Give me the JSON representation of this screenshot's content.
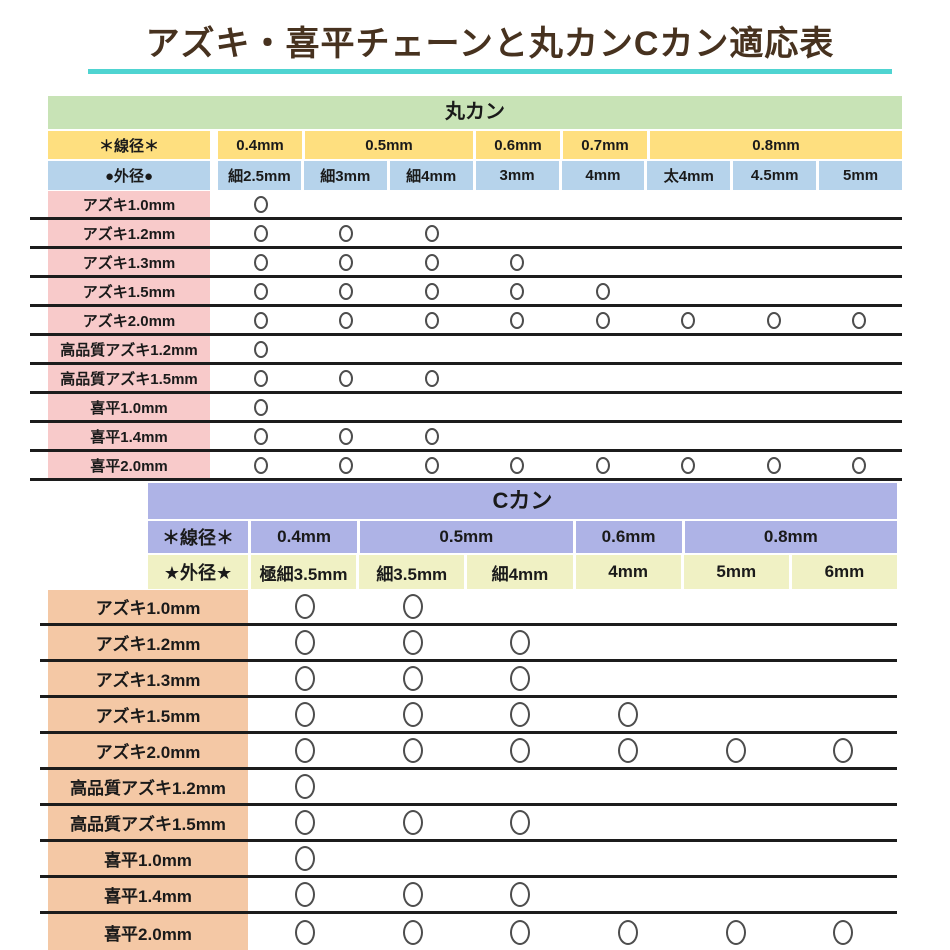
{
  "title": {
    "text": "アズキ・喜平チェーンと丸カンCカン適応表"
  },
  "colors": {
    "title_text": "#47321f",
    "title_underline": "#4fd4d1",
    "marukan_header": "#c8e3b6",
    "marukan_wire_row": "#fedf7f",
    "marukan_outer_row": "#b6d3eb",
    "marukan_row_label": "#f8caca",
    "ckan_header": "#aeb3e6",
    "ckan_outer_row": "#f0f1c4",
    "ckan_row_label": "#f4c8a5",
    "separator_line": "#1c1c1c"
  },
  "symbols": {
    "compatible_mark": "○"
  },
  "tables": [
    {
      "title": "丸カン",
      "wire_label": "＊線径＊",
      "outer_label": "●外径●",
      "wire_groups": [
        {
          "label": "0.4mm",
          "span": 1
        },
        {
          "label": "0.5mm",
          "span": 2
        },
        {
          "label": "0.6mm",
          "span": 1
        },
        {
          "label": "0.7mm",
          "span": 1
        },
        {
          "label": "0.8mm",
          "span": 3
        }
      ],
      "outer_cols": [
        "細2.5mm",
        "細3mm",
        "細4mm",
        "3mm",
        "4mm",
        "太4mm",
        "4.5mm",
        "5mm"
      ],
      "rows": [
        {
          "label": "アズキ1.0mm",
          "marks": [
            1,
            0,
            0,
            0,
            0,
            0,
            0,
            0
          ]
        },
        {
          "label": "アズキ1.2mm",
          "marks": [
            1,
            1,
            1,
            0,
            0,
            0,
            0,
            0
          ]
        },
        {
          "label": "アズキ1.3mm",
          "marks": [
            1,
            1,
            1,
            1,
            0,
            0,
            0,
            0
          ]
        },
        {
          "label": "アズキ1.5mm",
          "marks": [
            1,
            1,
            1,
            1,
            1,
            0,
            0,
            0
          ]
        },
        {
          "label": "アズキ2.0mm",
          "marks": [
            1,
            1,
            1,
            1,
            1,
            1,
            1,
            1
          ]
        },
        {
          "label": "高品質アズキ1.2mm",
          "marks": [
            1,
            0,
            0,
            0,
            0,
            0,
            0,
            0
          ]
        },
        {
          "label": "高品質アズキ1.5mm",
          "marks": [
            1,
            1,
            1,
            0,
            0,
            0,
            0,
            0
          ]
        },
        {
          "label": "喜平1.0mm",
          "marks": [
            1,
            0,
            0,
            0,
            0,
            0,
            0,
            0
          ]
        },
        {
          "label": "喜平1.4mm",
          "marks": [
            1,
            1,
            1,
            0,
            0,
            0,
            0,
            0
          ]
        },
        {
          "label": "喜平2.0mm",
          "marks": [
            1,
            1,
            1,
            1,
            1,
            1,
            1,
            1
          ]
        }
      ]
    },
    {
      "title": "Cカン",
      "wire_label": "＊線径＊",
      "outer_label": "★外径★",
      "wire_groups": [
        {
          "label": "0.4mm",
          "span": 1
        },
        {
          "label": "0.5mm",
          "span": 2
        },
        {
          "label": "0.6mm",
          "span": 1
        },
        {
          "label": "0.8mm",
          "span": 2
        }
      ],
      "outer_cols": [
        "極細3.5mm",
        "細3.5mm",
        "細4mm",
        "4mm",
        "5mm",
        "6mm"
      ],
      "rows": [
        {
          "label": "アズキ1.0mm",
          "marks": [
            1,
            1,
            0,
            0,
            0,
            0
          ]
        },
        {
          "label": "アズキ1.2mm",
          "marks": [
            1,
            1,
            1,
            0,
            0,
            0
          ]
        },
        {
          "label": "アズキ1.3mm",
          "marks": [
            1,
            1,
            1,
            0,
            0,
            0
          ]
        },
        {
          "label": "アズキ1.5mm",
          "marks": [
            1,
            1,
            1,
            1,
            0,
            0
          ]
        },
        {
          "label": "アズキ2.0mm",
          "marks": [
            1,
            1,
            1,
            1,
            1,
            1
          ]
        },
        {
          "label": "高品質アズキ1.2mm",
          "marks": [
            1,
            0,
            0,
            0,
            0,
            0
          ]
        },
        {
          "label": "高品質アズキ1.5mm",
          "marks": [
            1,
            1,
            1,
            0,
            0,
            0
          ]
        },
        {
          "label": "喜平1.0mm",
          "marks": [
            1,
            0,
            0,
            0,
            0,
            0
          ]
        },
        {
          "label": "喜平1.4mm",
          "marks": [
            1,
            1,
            1,
            0,
            0,
            0
          ]
        },
        {
          "label": "喜平2.0mm",
          "marks": [
            1,
            1,
            1,
            1,
            1,
            1
          ]
        }
      ]
    }
  ]
}
